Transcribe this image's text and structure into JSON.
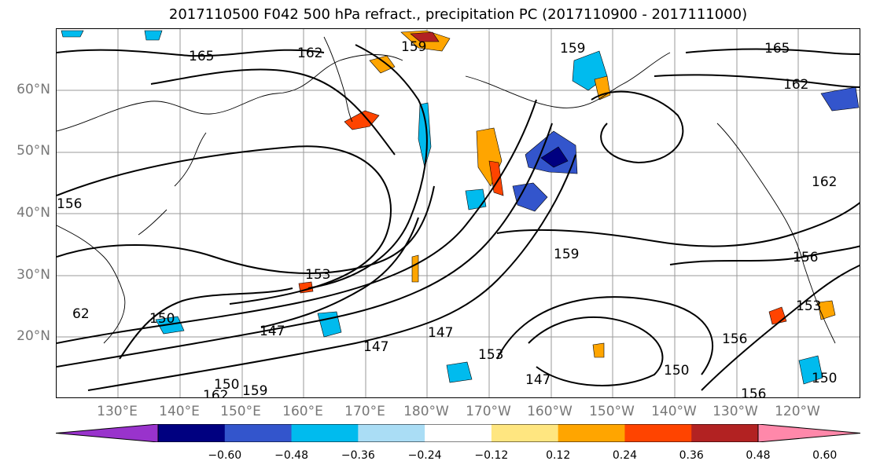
{
  "title": "2017110500 F042 500 hPa refract., precipitation PC (2017110900 - 2017111000)",
  "map": {
    "lat_labels": [
      "60°N",
      "50°N",
      "40°N",
      "30°N",
      "20°N"
    ],
    "lon_labels": [
      "130°E",
      "140°E",
      "150°E",
      "160°E",
      "170°E",
      "180°W",
      "170°W",
      "160°W",
      "150°W",
      "140°W",
      "130°W",
      "120°W"
    ],
    "contour_labels": [
      "165",
      "162",
      "159",
      "159",
      "165",
      "162",
      "156",
      "153",
      "150",
      "147",
      "147",
      "147",
      "159",
      "156",
      "153",
      "156",
      "150",
      "147",
      "150",
      "159",
      "162",
      "153",
      "62",
      "162",
      "150",
      "156"
    ]
  },
  "colorbar": {
    "ticks": [
      "−0.60",
      "−0.48",
      "−0.36",
      "−0.24",
      "−0.12",
      "0.12",
      "0.24",
      "0.36",
      "0.48",
      "0.60"
    ],
    "colors": [
      "#9933cc",
      "#000080",
      "#3355cc",
      "#00bbee",
      "#aaddf5",
      "#ffffff",
      "#ffe680",
      "#ffa500",
      "#ff4400",
      "#b22222",
      "#ff88aa"
    ]
  }
}
